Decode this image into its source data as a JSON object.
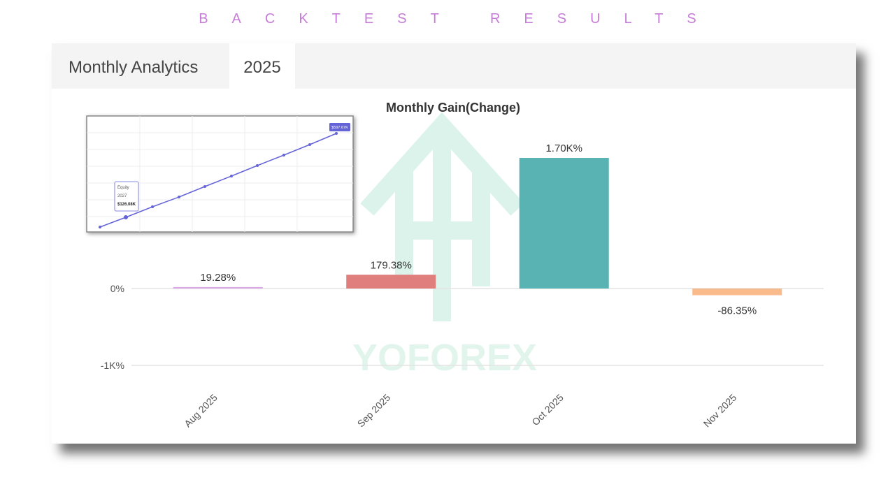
{
  "banner": "BACKTEST RESULTS",
  "tabs": [
    "Monthly Analytics",
    "2025"
  ],
  "watermark": "YOFOREX",
  "inset": {
    "tooltip": [
      "Equity",
      "2027",
      "$126.08K"
    ],
    "end_label": "$597.67K"
  },
  "chart_data": {
    "type": "bar",
    "title": "Monthly Gain(Change)",
    "categories": [
      "Aug 2025",
      "Sep 2025",
      "Oct 2025",
      "Nov 2025"
    ],
    "values": [
      19.28,
      179.38,
      1700,
      -86.35
    ],
    "value_labels": [
      "19.28%",
      "179.38%",
      "1.70K%",
      "-86.35%"
    ],
    "colors": [
      "#d9a9e3",
      "#e07d7d",
      "#5ab3b3",
      "#f9ba8c"
    ],
    "ylim": [
      -1000,
      2000
    ],
    "yticks": [
      {
        "value": 0,
        "label": "0%"
      },
      {
        "value": -1000,
        "label": "-1K%"
      }
    ],
    "grid": true
  }
}
